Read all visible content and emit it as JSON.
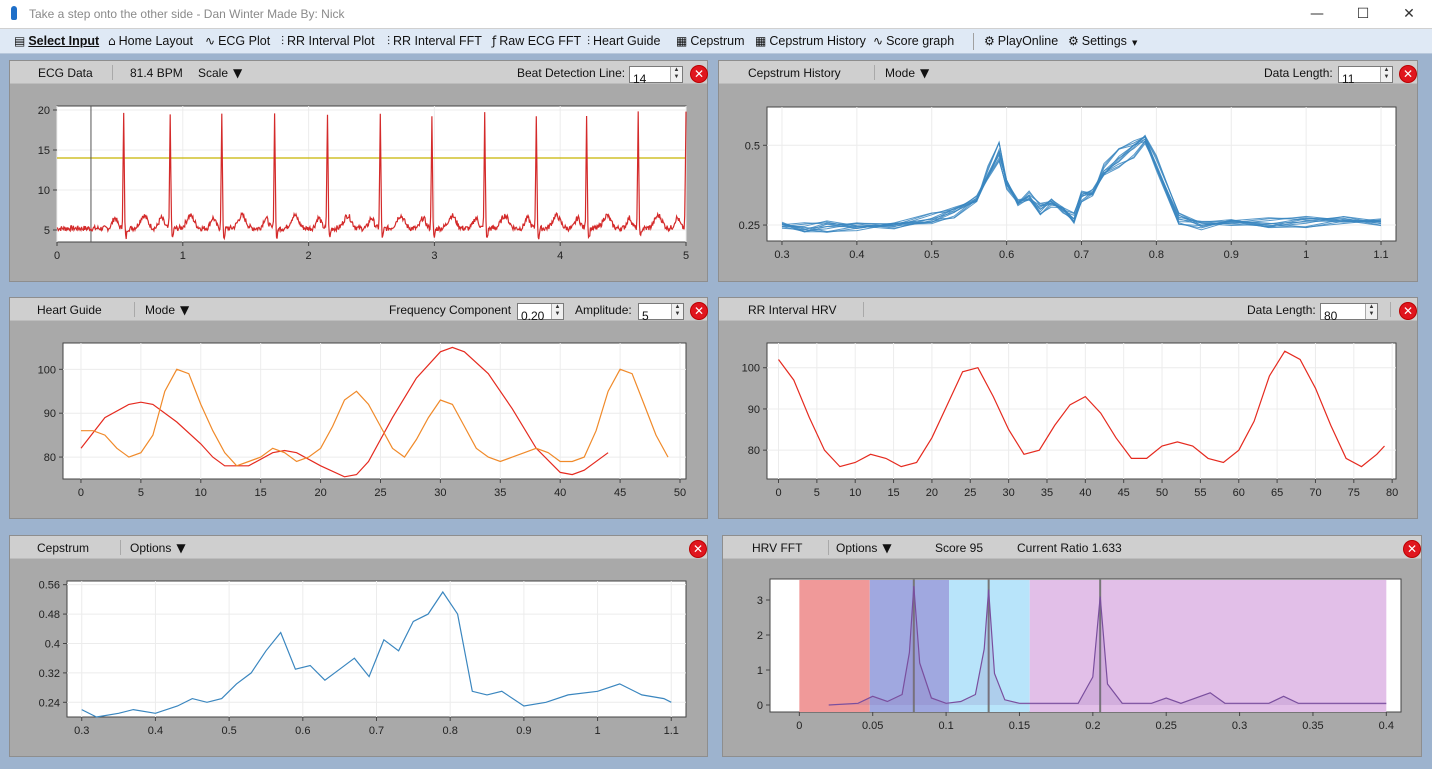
{
  "window": {
    "title": "Take a step onto the other side - Dan Winter Made By: Nick",
    "minimize": "—",
    "maximize": "☐",
    "close": "✕"
  },
  "menu": [
    {
      "name": "select-input",
      "label": "Select Input",
      "icon": "▤",
      "x": 14
    },
    {
      "name": "home-layout",
      "label": "Home Layout",
      "icon": "⌂",
      "x": 108
    },
    {
      "name": "ecg-plot",
      "label": "ECG Plot",
      "icon": "∿",
      "x": 205
    },
    {
      "name": "rr-interval-plot",
      "label": "RR Interval Plot",
      "icon": "⫶",
      "x": 281
    },
    {
      "name": "rr-interval-fft",
      "label": "RR Interval FFT",
      "icon": "⫶",
      "x": 387
    },
    {
      "name": "raw-ecg-fft",
      "label": "Raw ECG FFT",
      "icon": "ƒ",
      "x": 492
    },
    {
      "name": "heart-guide",
      "label": "Heart Guide",
      "icon": "⫶",
      "x": 587
    },
    {
      "name": "cepstrum",
      "label": "Cepstrum",
      "icon": "▦",
      "x": 676
    },
    {
      "name": "cepstrum-history",
      "label": "Cepstrum History",
      "icon": "▦",
      "x": 755
    },
    {
      "name": "score-graph",
      "label": "Score graph",
      "icon": "∿",
      "x": 873
    },
    {
      "name": "play-online",
      "label": "PlayOnline",
      "icon": "⚙",
      "x": 984
    },
    {
      "name": "settings",
      "label": "Settings",
      "icon": "⚙",
      "x": 1068
    }
  ],
  "panels": {
    "ecg": {
      "title": "ECG Data",
      "bpm": "81.4 BPM",
      "scale": "Scale",
      "beat_label": "Beat Detection Line:",
      "beat_value": "14"
    },
    "ceph": {
      "title": "Cepstrum History",
      "mode": "Mode",
      "dl_label": "Data Length:",
      "dl_value": "11"
    },
    "hg": {
      "title": "Heart Guide",
      "mode": "Mode",
      "freq_label": "Frequency Component",
      "freq_value": "0.20",
      "amp_label": "Amplitude:",
      "amp_value": "5"
    },
    "rr": {
      "title": "RR Interval HRV",
      "dl_label": "Data Length:",
      "dl_value": "80"
    },
    "cep": {
      "title": "Cepstrum",
      "options": "Options"
    },
    "fft": {
      "title": "HRV FFT",
      "options": "Options",
      "score": "Score 95",
      "ratio": "Current Ratio 1.633"
    }
  },
  "chart_data": [
    {
      "id": "ecg",
      "type": "line",
      "xlim": [
        0,
        5
      ],
      "ylim": [
        3.5,
        20.5
      ],
      "xticks": [
        0,
        1,
        2,
        3,
        4,
        5
      ],
      "yticks": [
        5,
        10,
        15,
        20
      ],
      "threshold": 14,
      "threshold_color": "#c8b400",
      "cursor_x": 0.27,
      "color": "#d42a2a",
      "r_peaks": [
        0.53,
        0.9,
        1.31,
        1.73,
        2.15,
        2.57,
        2.98,
        3.4,
        3.81,
        4.21,
        4.62,
        5.0
      ],
      "baseline": 5.2,
      "peak": 19.5
    },
    {
      "id": "ceph",
      "type": "line",
      "xlim": [
        0.28,
        1.12
      ],
      "ylim": [
        0.2,
        0.62
      ],
      "xticks": [
        0.3,
        0.4,
        0.5,
        0.6,
        0.7,
        0.8,
        0.9,
        1,
        1.1
      ],
      "yticks": [
        0.25,
        0.5
      ],
      "color": "#3a86bf",
      "series": [
        {
          "x": [
            0.3,
            0.33,
            0.36,
            0.4,
            0.45,
            0.5,
            0.53,
            0.56,
            0.575,
            0.59,
            0.6,
            0.615,
            0.63,
            0.645,
            0.66,
            0.675,
            0.69,
            0.7,
            0.715,
            0.73,
            0.75,
            0.77,
            0.785,
            0.8,
            0.83,
            0.86,
            0.9,
            0.95,
            1,
            1.05,
            1.1
          ],
          "y": [
            0.25,
            0.24,
            0.245,
            0.245,
            0.25,
            0.27,
            0.29,
            0.33,
            0.41,
            0.48,
            0.38,
            0.32,
            0.34,
            0.3,
            0.32,
            0.3,
            0.27,
            0.34,
            0.35,
            0.42,
            0.46,
            0.49,
            0.52,
            0.44,
            0.27,
            0.25,
            0.26,
            0.255,
            0.26,
            0.265,
            0.26
          ]
        }
      ]
    },
    {
      "id": "hg",
      "type": "line",
      "xlim": [
        -1.5,
        50.5
      ],
      "ylim": [
        75,
        106
      ],
      "xticks": [
        0,
        5,
        10,
        15,
        20,
        25,
        30,
        35,
        40,
        45,
        50
      ],
      "yticks": [
        80,
        90,
        100
      ],
      "series": [
        {
          "color": "#e52a1f",
          "x": [
            0,
            2,
            4,
            5,
            6,
            8,
            10,
            11,
            12,
            13,
            14,
            16,
            17,
            18,
            20,
            22,
            23,
            24,
            26,
            28,
            30,
            31,
            32,
            34,
            36,
            38,
            40,
            41,
            42,
            44
          ],
          "y": [
            82,
            89,
            92,
            92.5,
            92,
            88,
            83,
            80,
            78,
            78,
            78,
            81,
            81.5,
            81,
            78,
            75.5,
            76,
            79,
            89,
            98,
            104,
            105,
            104,
            99,
            91,
            82,
            76.5,
            76,
            77,
            81
          ]
        },
        {
          "color": "#f08a2a",
          "x": [
            0,
            1,
            2,
            3,
            4,
            5,
            6,
            7,
            8,
            9,
            10,
            11,
            12,
            13,
            14,
            15,
            16,
            17,
            18,
            19,
            20,
            21,
            22,
            23,
            24,
            25,
            26,
            27,
            28,
            29,
            30,
            31,
            32,
            33,
            34,
            35,
            36,
            37,
            38,
            39,
            40,
            41,
            42,
            43,
            44,
            45,
            46,
            47,
            48,
            49
          ],
          "y": [
            86,
            86,
            85,
            82,
            80,
            81,
            85,
            95,
            100,
            99,
            92,
            86,
            81,
            78,
            79,
            80,
            82,
            81,
            79,
            80,
            82,
            87,
            93,
            95,
            92,
            87,
            82,
            80,
            84,
            89,
            93,
            92,
            87,
            82,
            80,
            79,
            80,
            81,
            82,
            81,
            79,
            79,
            80,
            86,
            95,
            100,
            99,
            92,
            85,
            80
          ]
        }
      ]
    },
    {
      "id": "rr",
      "type": "line",
      "xlim": [
        -1.5,
        80.5
      ],
      "ylim": [
        73,
        106
      ],
      "xticks": [
        0,
        5,
        10,
        15,
        20,
        25,
        30,
        35,
        40,
        45,
        50,
        55,
        60,
        65,
        70,
        75,
        80
      ],
      "yticks": [
        80,
        90,
        100
      ],
      "color": "#e52a1f",
      "series": [
        {
          "x": [
            0,
            2,
            4,
            6,
            8,
            10,
            12,
            14,
            16,
            18,
            20,
            22,
            24,
            26,
            28,
            30,
            32,
            34,
            36,
            38,
            40,
            42,
            44,
            46,
            48,
            50,
            52,
            54,
            56,
            58,
            60,
            62,
            64,
            66,
            68,
            70,
            72,
            74,
            76,
            78,
            79
          ],
          "y": [
            102,
            97,
            88,
            80,
            76,
            77,
            79,
            78,
            76,
            77,
            83,
            91,
            99,
            100,
            93,
            85,
            79,
            80,
            86,
            91,
            93,
            89,
            83,
            78,
            78,
            81,
            82,
            81,
            78,
            77,
            80,
            87,
            98,
            104,
            102,
            95,
            86,
            78,
            76,
            79,
            81
          ]
        }
      ]
    },
    {
      "id": "cep",
      "type": "line",
      "xlim": [
        0.28,
        1.12
      ],
      "ylim": [
        0.2,
        0.57
      ],
      "xticks": [
        0.3,
        0.4,
        0.5,
        0.6,
        0.7,
        0.8,
        0.9,
        1,
        1.1
      ],
      "yticks": [
        0.24,
        0.32,
        0.4,
        0.48,
        0.56
      ],
      "color": "#3a86bf",
      "series": [
        {
          "x": [
            0.3,
            0.32,
            0.35,
            0.37,
            0.4,
            0.43,
            0.45,
            0.47,
            0.49,
            0.51,
            0.53,
            0.55,
            0.57,
            0.59,
            0.61,
            0.63,
            0.65,
            0.67,
            0.69,
            0.71,
            0.73,
            0.75,
            0.77,
            0.79,
            0.81,
            0.83,
            0.85,
            0.87,
            0.9,
            0.93,
            0.96,
            1,
            1.03,
            1.06,
            1.09,
            1.1
          ],
          "y": [
            0.22,
            0.2,
            0.21,
            0.22,
            0.21,
            0.23,
            0.25,
            0.24,
            0.25,
            0.29,
            0.32,
            0.38,
            0.43,
            0.33,
            0.34,
            0.3,
            0.33,
            0.36,
            0.31,
            0.41,
            0.38,
            0.46,
            0.48,
            0.54,
            0.48,
            0.27,
            0.26,
            0.27,
            0.23,
            0.24,
            0.26,
            0.27,
            0.29,
            0.26,
            0.25,
            0.24
          ]
        }
      ]
    },
    {
      "id": "fft",
      "type": "area",
      "xlim": [
        -0.02,
        0.41
      ],
      "ylim": [
        -0.2,
        3.6
      ],
      "xticks": [
        0,
        0.05,
        0.1,
        0.15,
        0.2,
        0.25,
        0.3,
        0.35,
        0.4
      ],
      "yticks": [
        0,
        1,
        2,
        3
      ],
      "color": "#7a4f9e",
      "bands": [
        {
          "from": 0,
          "to": 0.048,
          "color": "#f09999"
        },
        {
          "from": 0.048,
          "to": 0.102,
          "color": "#a0a8e0"
        },
        {
          "from": 0.102,
          "to": 0.157,
          "color": "#b8e4fa"
        },
        {
          "from": 0.157,
          "to": 0.4,
          "color": "#e2bfe8"
        }
      ],
      "markers": [
        0.078,
        0.129,
        0.205
      ],
      "series": [
        {
          "x": [
            0.02,
            0.04,
            0.05,
            0.06,
            0.07,
            0.075,
            0.078,
            0.082,
            0.09,
            0.1,
            0.11,
            0.12,
            0.126,
            0.129,
            0.133,
            0.14,
            0.15,
            0.17,
            0.19,
            0.2,
            0.205,
            0.21,
            0.22,
            0.24,
            0.25,
            0.26,
            0.28,
            0.29,
            0.3,
            0.32,
            0.33,
            0.34,
            0.36,
            0.38,
            0.4
          ],
          "y": [
            0,
            0.05,
            0.25,
            0.1,
            0.3,
            1.5,
            3.4,
            1.2,
            0.2,
            0.05,
            0.1,
            0.3,
            1.6,
            3.3,
            0.9,
            0.15,
            0.05,
            0.05,
            0.05,
            0.8,
            3.1,
            0.6,
            0.05,
            0.05,
            0.2,
            0.05,
            0.35,
            0.05,
            0.05,
            0.05,
            0.25,
            0.05,
            0.05,
            0.05,
            0.05
          ]
        }
      ]
    }
  ]
}
